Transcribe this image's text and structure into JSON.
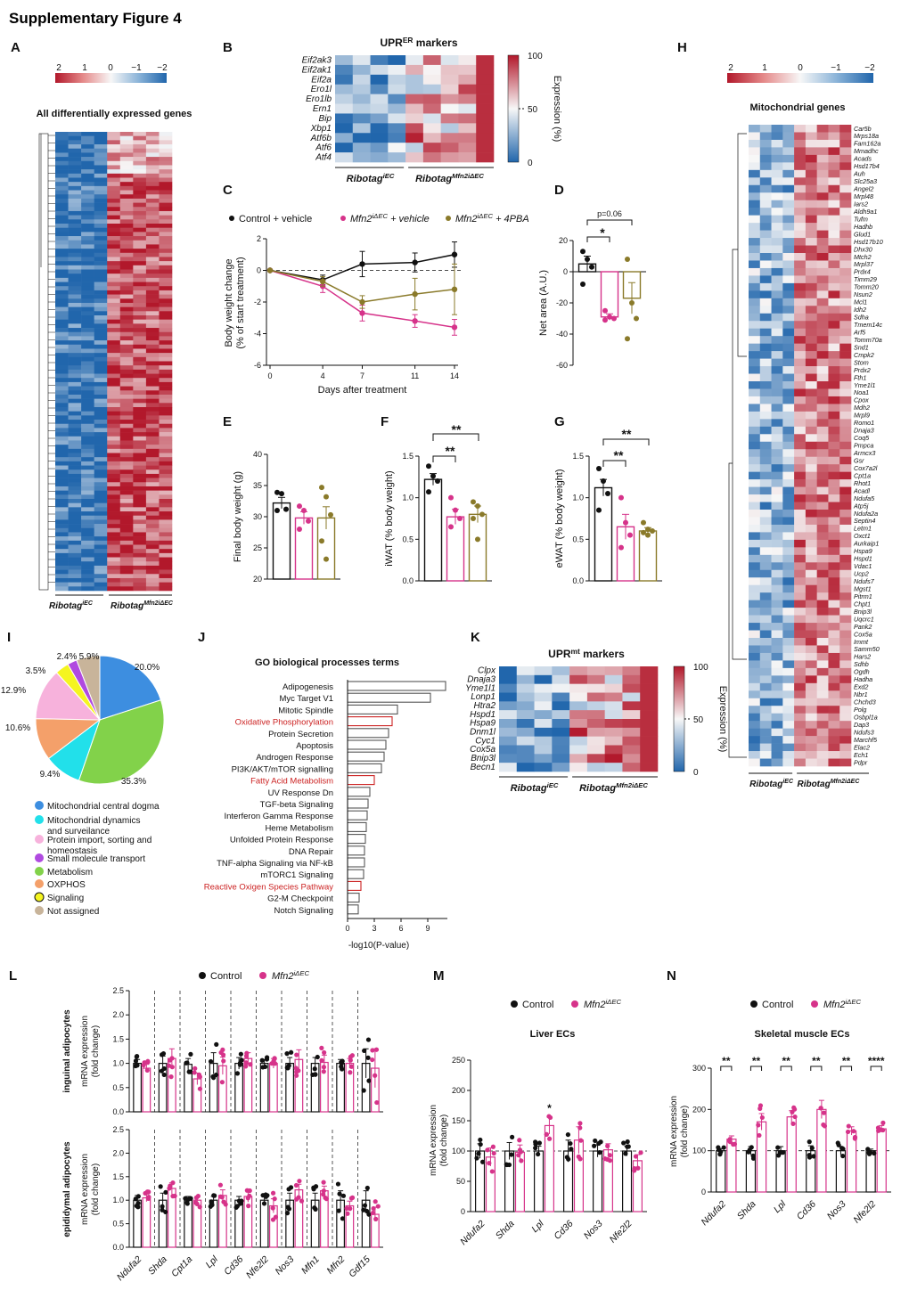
{
  "figure_title": "Supplementary Figure 4",
  "colors": {
    "black": "#111111",
    "pink": "#d6338a",
    "olive": "#8a7a2a",
    "red_term": "#cc2222",
    "hm_red": "#b2182b",
    "hm_blue": "#2166ac"
  },
  "panel_letters": [
    "A",
    "B",
    "C",
    "D",
    "E",
    "F",
    "G",
    "H",
    "I",
    "J",
    "K",
    "L",
    "M",
    "N"
  ],
  "panelA": {
    "scale_ticks": [
      "2",
      "1",
      "0",
      "−1",
      "−2"
    ],
    "title": "All differentially expressed genes",
    "group1": "Ribotag",
    "group1_sup": "iEC",
    "group2": "Ribotag",
    "group2_sup": "Mfn2iΔEC"
  },
  "panelB": {
    "title": "UPR",
    "title_sup": "ER",
    "title_suffix": " markers",
    "genes": [
      "Eif2ak3",
      "Eif2ak1",
      "Eif2a",
      "Ero1l",
      "Ero1lb",
      "Ern1",
      "Bip",
      "Xbp1",
      "Atf6b",
      "Atf6",
      "Atf4"
    ],
    "colorbar_ticks": [
      "100",
      "50",
      "0"
    ],
    "colorbar_label": "Expression (%)",
    "group1": "Ribotag",
    "group1_sup": "iEC",
    "group2": "Ribotag",
    "group2_sup": "Mfn2iΔEC"
  },
  "panelC": {
    "legend": [
      "Control + vehicle",
      "Mfn2",
      "iΔEC",
      " + vehicle",
      "Mfn2",
      "iΔEC",
      " + 4PBA"
    ],
    "ylabel1": "Body weight change",
    "ylabel2": "(% of start treatment)",
    "xlabel": "Days after treatment"
  },
  "panelD": {
    "ylabel": "Net area (A.U.)",
    "pvalue": "p=0.06",
    "star": "*"
  },
  "panelE": {
    "ylabel": "Final body weight (g)"
  },
  "panelF": {
    "ylabel": "iWAT (% body weight)",
    "stars": [
      "**",
      "**"
    ]
  },
  "panelG": {
    "ylabel": "eWAT (% body weight)",
    "stars": [
      "**",
      "**"
    ]
  },
  "panelH": {
    "scale_ticks": [
      "2",
      "1",
      "0",
      "−1",
      "−2"
    ],
    "title": "Mitochondrial genes",
    "genes": [
      "Car5b",
      "Mrps18a",
      "Fam162a",
      "Mmadhc",
      "Acads",
      "Hsd17b4",
      "Auh",
      "Slc25a3",
      "Angel2",
      "Mrpl48",
      "Iars2",
      "Aldh9a1",
      "Tufm",
      "Hadhb",
      "Glud1",
      "Hsd17b10",
      "Dhx30",
      "Mtch2",
      "Mrpl37",
      "Prdx4",
      "Timm29",
      "Tomm20",
      "Nsun2",
      "Mcl1",
      "Idh2",
      "Sdha",
      "Tmem14c",
      "Arf5",
      "Tomm70a",
      "Snd1",
      "Cmpk2",
      "Stom",
      "Prdx2",
      "Fth1",
      "Yme1l1",
      "Noa1",
      "Cpox",
      "Mdh2",
      "Mrpl9",
      "Romo1",
      "Dnaja3",
      "Coq5",
      "Pmpca",
      "Armcx3",
      "Gsr",
      "Cox7a2l",
      "Cpt1a",
      "Rhot1",
      "Acadl",
      "Ndufa5",
      "Atp5j",
      "Ndufa2a",
      "Septin4",
      "Letm1",
      "Oxct1",
      "Aurkaip1",
      "Hspa9",
      "Hspd1",
      "Vdac1",
      "Ucp2",
      "Ndufs7",
      "Mgst1",
      "Pitrm1",
      "Chpt1",
      "Bnip3l",
      "Uqcrc1",
      "Pank2",
      "Cox5a",
      "Immt",
      "Samm50",
      "Hars2",
      "Sdhb",
      "Ogdh",
      "Hadha",
      "Exd2",
      "Nbr1",
      "Chchd3",
      "Polg",
      "Osbpl1a",
      "Dap3",
      "Ndufs3",
      "Marchf5",
      "Elac2",
      "Ech1",
      "Pdpr"
    ],
    "group1": "Ribotag",
    "group1_sup": "iEC",
    "group2": "Ribotag",
    "group2_sup": "Mfn2iΔEC"
  },
  "chart_data": [
    {
      "panel": "C",
      "type": "line",
      "xlabel": "Days after treatment",
      "ylabel": "Body weight change (% of start treatment)",
      "x": [
        0,
        4,
        7,
        11,
        14
      ],
      "xlim": [
        0,
        14
      ],
      "ylim": [
        -6,
        2
      ],
      "xticks": [
        "0",
        "4",
        "7",
        "11",
        "14"
      ],
      "yticks": [
        "2",
        "0",
        "-2",
        "-4",
        "-6"
      ],
      "series": [
        {
          "name": "Control + vehicle",
          "color": "#111111",
          "values": [
            0,
            -0.6,
            0.4,
            0.5,
            1.0
          ],
          "err": [
            0,
            0.3,
            0.8,
            0.6,
            0.8
          ]
        },
        {
          "name": "Mfn2 iΔEC + vehicle",
          "color": "#d6338a",
          "values": [
            0,
            -1.0,
            -2.7,
            -3.2,
            -3.6
          ],
          "err": [
            0,
            0.4,
            0.5,
            0.4,
            0.5
          ]
        },
        {
          "name": "Mfn2 iΔEC + 4PBA",
          "color": "#8a7a2a",
          "values": [
            0,
            -0.7,
            -2.0,
            -1.5,
            -1.2
          ],
          "err": [
            0,
            0.3,
            0.4,
            1.0,
            1.6
          ]
        }
      ]
    },
    {
      "panel": "D",
      "type": "bar",
      "ylabel": "Net area (A.U.)",
      "ylim": [
        -60,
        20
      ],
      "yticks": [
        "20",
        "0",
        "-20",
        "-40",
        "-60"
      ],
      "groups": [
        {
          "name": "Control + vehicle",
          "color": "#111111",
          "mean": 5,
          "err": 5,
          "points": [
            13,
            8,
            3,
            -8
          ]
        },
        {
          "name": "Mfn2 iΔEC + vehicle",
          "color": "#d6338a",
          "mean": -29,
          "err": 2,
          "points": [
            -25,
            -29,
            -30,
            -31
          ]
        },
        {
          "name": "Mfn2 iΔEC + 4PBA",
          "color": "#8a7a2a",
          "mean": -17,
          "err": 10,
          "points": [
            8,
            -20,
            -30,
            -43
          ]
        }
      ]
    },
    {
      "panel": "E",
      "type": "bar",
      "ylabel": "Final body weight (g)",
      "ylim": [
        20,
        40
      ],
      "yticks": [
        "40",
        "35",
        "30",
        "25",
        "20"
      ],
      "groups": [
        {
          "name": "Control + vehicle",
          "color": "#111111",
          "mean": 32.2,
          "err": 0.9,
          "points": [
            33.9,
            33.7,
            31.2,
            31.0
          ]
        },
        {
          "name": "Mfn2 iΔEC + vehicle",
          "color": "#d6338a",
          "mean": 29.8,
          "err": 1.0,
          "points": [
            31.7,
            31.0,
            29.3,
            28.0
          ]
        },
        {
          "name": "Mfn2 iΔEC + 4PBA",
          "color": "#8a7a2a",
          "mean": 29.8,
          "err": 1.8,
          "points": [
            34.7,
            33.2,
            30.3,
            26.1,
            23.2
          ]
        }
      ]
    },
    {
      "panel": "F",
      "type": "bar",
      "ylabel": "iWAT (% body weight)",
      "ylim": [
        0,
        1.5
      ],
      "yticks": [
        "1.5",
        "1.0",
        "0.5",
        "0.0"
      ],
      "groups": [
        {
          "name": "Control + vehicle",
          "color": "#111111",
          "mean": 1.22,
          "err": 0.07,
          "points": [
            1.38,
            1.26,
            1.2,
            1.07
          ]
        },
        {
          "name": "Mfn2 iΔEC + vehicle",
          "color": "#d6338a",
          "mean": 0.77,
          "err": 0.09,
          "points": [
            1.0,
            0.85,
            0.75,
            0.65
          ]
        },
        {
          "name": "Mfn2 iΔEC + 4PBA",
          "color": "#8a7a2a",
          "mean": 0.8,
          "err": 0.1,
          "points": [
            0.95,
            0.9,
            0.8,
            0.75,
            0.5
          ]
        }
      ]
    },
    {
      "panel": "G",
      "type": "bar",
      "ylabel": "eWAT (% body weight)",
      "ylim": [
        0,
        1.5
      ],
      "yticks": [
        "1.5",
        "1.0",
        "0.5",
        "0.0"
      ],
      "groups": [
        {
          "name": "Control + vehicle",
          "color": "#111111",
          "mean": 1.12,
          "err": 0.1,
          "points": [
            1.35,
            1.2,
            1.05,
            0.85
          ]
        },
        {
          "name": "Mfn2 iΔEC + vehicle",
          "color": "#d6338a",
          "mean": 0.65,
          "err": 0.15,
          "points": [
            1.0,
            0.7,
            0.55,
            0.4
          ]
        },
        {
          "name": "Mfn2 iΔEC + 4PBA",
          "color": "#8a7a2a",
          "mean": 0.6,
          "err": 0.04,
          "points": [
            0.7,
            0.62,
            0.6,
            0.58,
            0.55
          ]
        }
      ]
    },
    {
      "panel": "I",
      "type": "pie",
      "values": [
        20.0,
        35.3,
        9.4,
        10.6,
        12.9,
        3.5,
        2.4,
        5.9
      ],
      "labels": [
        "20.0%",
        "35.3%",
        "9.4%",
        "10.6%",
        "12.9%",
        "3.5%",
        "2.4%",
        "5.9%"
      ],
      "colors": [
        "#3d8ee0",
        "#82d24a",
        "#22e0ea",
        "#f4a06a",
        "#f7b2dc",
        "#f5f520",
        "#b04ae0",
        "#c8b49a"
      ],
      "legend": [
        "Mitochondrial central dogma",
        "Mitochondrial dynamics and surveilance",
        "Protein import, sorting and homeostasis",
        "Small molecule transport",
        "Metabolism",
        "OXPHOS",
        "Signaling",
        "Not assigned"
      ],
      "legend_colors": [
        "#3d8ee0",
        "#22e0ea",
        "#f7b2dc",
        "#b04ae0",
        "#82d24a",
        "#f4a06a",
        "#f5f520",
        "#c8b49a"
      ]
    },
    {
      "panel": "J",
      "type": "bar",
      "title": "GO biological processes terms",
      "xlabel": "-log10(P-value)",
      "xlim": [
        0,
        12
      ],
      "xticks": [
        "0",
        "3",
        "6",
        "9"
      ],
      "categories": [
        "Adipogenesis",
        "Myc Target V1",
        "Mitotic Spindle",
        "Oxidative Phosphorylation",
        "Protein Secretion",
        "Apoptosis",
        "Androgen Response",
        "PI3K/AKT/mTOR signalling",
        "Fatty Acid Metabolism",
        "UV Response Dn",
        "TGF-beta Signaling",
        "Interferon Gamma Response",
        "Heme Metabolism",
        "Unfolded Protein Response",
        "DNA Repair",
        "TNF-alpha Signaling via NF-kB",
        "mTORC1 Signaling",
        "Reactive Oxigen Species Pathway",
        "G2-M Checkpoint",
        "Notch Signaling"
      ],
      "values": [
        11.0,
        9.3,
        5.6,
        5.0,
        4.6,
        4.3,
        4.1,
        3.8,
        3.0,
        2.5,
        2.3,
        2.2,
        2.1,
        2.0,
        1.9,
        1.9,
        1.8,
        1.5,
        1.3,
        1.2
      ],
      "highlight": [
        false,
        false,
        false,
        true,
        false,
        false,
        false,
        false,
        true,
        false,
        false,
        false,
        false,
        false,
        false,
        false,
        false,
        true,
        false,
        false
      ]
    },
    {
      "panel": "L",
      "type": "bar",
      "ylabel": "mRNA expression (fold change)",
      "ylim": [
        0,
        2.5
      ],
      "yticks": [
        "2.5",
        "2.0",
        "1.5",
        "1.0",
        "0.5",
        "0.0"
      ],
      "legend": [
        "Control",
        "Mfn2 iΔEC"
      ],
      "row_labels": [
        "inguinal adipocytes",
        "epididymal adipocytes"
      ],
      "categories": [
        "Ndufa2",
        "Shda",
        "Cpt1a",
        "Lpl",
        "Cd36",
        "Nfe2l2",
        "Nos3",
        "Mfn1",
        "Mfn2",
        "Gdf15"
      ],
      "series": [
        {
          "name": "inguinal Control",
          "values": [
            1.0,
            1.0,
            0.98,
            1.0,
            1.0,
            1.0,
            1.0,
            1.0,
            1.0,
            1.0
          ],
          "err": [
            0.08,
            0.15,
            0.12,
            0.22,
            0.12,
            0.08,
            0.12,
            0.12,
            0.08,
            0.3
          ]
        },
        {
          "name": "inguinal Mfn2 iΔEC",
          "values": [
            0.9,
            1.1,
            0.68,
            0.95,
            1.1,
            1.0,
            1.08,
            1.02,
            1.0,
            0.9
          ],
          "err": [
            0.08,
            0.2,
            0.12,
            0.18,
            0.12,
            0.1,
            0.2,
            0.15,
            0.1,
            0.4
          ]
        },
        {
          "name": "epididymal Control",
          "values": [
            1.0,
            1.0,
            1.0,
            1.0,
            1.0,
            1.0,
            1.0,
            1.0,
            1.0,
            1.0
          ],
          "err": [
            0.1,
            0.15,
            0.08,
            0.08,
            0.08,
            0.12,
            0.15,
            0.15,
            0.2,
            0.2
          ]
        },
        {
          "name": "epididymal Mfn2 iΔEC",
          "values": [
            1.05,
            1.25,
            1.0,
            1.1,
            1.08,
            0.88,
            1.22,
            1.2,
            0.88,
            0.7
          ],
          "err": [
            0.08,
            0.12,
            0.08,
            0.12,
            0.12,
            0.15,
            0.12,
            0.1,
            0.1,
            0.15
          ]
        }
      ]
    },
    {
      "panel": "M",
      "type": "bar",
      "title": "Liver ECs",
      "ylabel": "mRNA expression (fold change)",
      "ylim": [
        0,
        250
      ],
      "yticks": [
        "250",
        "200",
        "150",
        "100",
        "50",
        "0"
      ],
      "legend": [
        "Control",
        "Mfn2 iΔEC"
      ],
      "categories": [
        "Ndufa2",
        "Shda",
        "Lpl",
        "Cd36",
        "Nos3",
        "Nfe2l2"
      ],
      "series": [
        {
          "name": "Control",
          "values": [
            100,
            100,
            100,
            100,
            100,
            100
          ],
          "err": [
            12,
            14,
            8,
            18,
            10,
            8
          ]
        },
        {
          "name": "Mfn2 iΔEC",
          "values": [
            90,
            98,
            142,
            118,
            102,
            84
          ],
          "err": [
            15,
            12,
            14,
            22,
            10,
            10
          ]
        }
      ],
      "annotations": [
        "",
        "",
        "*",
        "",
        "",
        ""
      ]
    },
    {
      "panel": "N",
      "type": "bar",
      "title": "Skeletal muscle ECs",
      "ylabel": "mRNA expression (fold change)",
      "ylim": [
        0,
        300
      ],
      "yticks": [
        "300",
        "200",
        "100",
        "0"
      ],
      "legend": [
        "Control",
        "Mfn2 iΔEC"
      ],
      "categories": [
        "Ndufa2",
        "Shda",
        "Lpl",
        "Cd36",
        "Nos3",
        "Nfe2l2"
      ],
      "series": [
        {
          "name": "Control",
          "values": [
            100,
            100,
            100,
            100,
            100,
            100
          ],
          "err": [
            5,
            10,
            10,
            12,
            10,
            4
          ]
        },
        {
          "name": "Mfn2 iΔEC",
          "values": [
            128,
            170,
            182,
            200,
            148,
            153
          ],
          "err": [
            8,
            20,
            15,
            22,
            10,
            8
          ]
        }
      ],
      "annotations": [
        "**",
        "**",
        "**",
        "**",
        "**",
        "****"
      ]
    }
  ],
  "panelK": {
    "title": "UPR",
    "title_sup": "mt",
    "title_suffix": " markers",
    "genes": [
      "Clpx",
      "Dnaja3",
      "Yme1l1",
      "Lonp1",
      "Htra2",
      "Hspd1",
      "Hspa9",
      "Dnm1l",
      "Cyc1",
      "Cox5a",
      "Bnip3l",
      "Becn1"
    ],
    "colorbar_ticks": [
      "100",
      "50",
      "0"
    ],
    "colorbar_label": "Expression (%)",
    "group1": "Ribotag",
    "group1_sup": "iEC",
    "group2": "Ribotag",
    "group2_sup": "Mfn2iΔEC"
  },
  "panelL_labels": {
    "legend_control": "Control",
    "legend_ko": "Mfn2",
    "legend_ko_sup": "iΔEC",
    "row1": "inguinal adipocytes",
    "row2": "epididymal adipocytes",
    "ylabel1": "mRNA expression",
    "ylabel2": "(fold change)"
  },
  "panelM_labels": {
    "legend_control": "Control",
    "legend_ko": "Mfn2",
    "legend_ko_sup": "iΔEC",
    "title": "Liver ECs",
    "ylabel1": "mRNA expression",
    "ylabel2": "(fold change)"
  },
  "panelN_labels": {
    "legend_control": "Control",
    "legend_ko": "Mfn2",
    "legend_ko_sup": "iΔEC",
    "title": "Skeletal muscle ECs",
    "ylabel1": "mRNA expression",
    "ylabel2": "(fold change)"
  }
}
